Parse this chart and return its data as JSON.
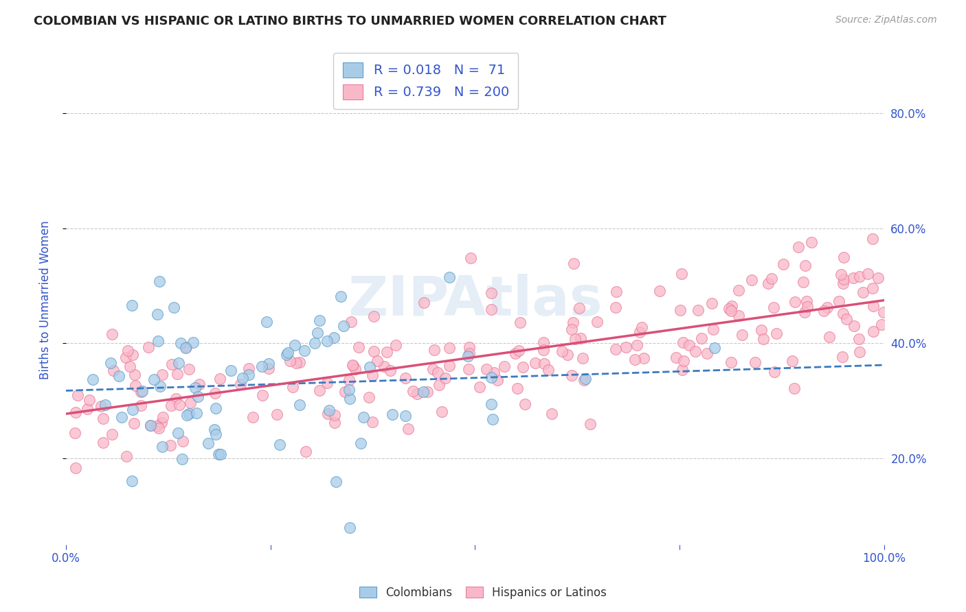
{
  "title": "COLOMBIAN VS HISPANIC OR LATINO BIRTHS TO UNMARRIED WOMEN CORRELATION CHART",
  "source": "Source: ZipAtlas.com",
  "ylabel": "Births to Unmarried Women",
  "r_colombian": 0.018,
  "n_colombian": 71,
  "r_hispanic": 0.739,
  "n_hispanic": 200,
  "color_colombian_fill": "#a8cce8",
  "color_colombian_edge": "#5b9dc9",
  "color_hispanic_fill": "#f9b8c8",
  "color_hispanic_edge": "#e87a9a",
  "color_trend_colombian": "#3a7abf",
  "color_trend_hispanic": "#d94f78",
  "title_color": "#222222",
  "source_color": "#999999",
  "axis_label_color": "#3355cc",
  "legend_r_color": "#3355cc",
  "background_color": "#ffffff",
  "grid_color": "#bbbbbb",
  "xlim": [
    0.0,
    1.0
  ],
  "ylim": [
    0.05,
    0.9
  ],
  "yticks": [
    0.2,
    0.4,
    0.6,
    0.8
  ],
  "seed": 42
}
